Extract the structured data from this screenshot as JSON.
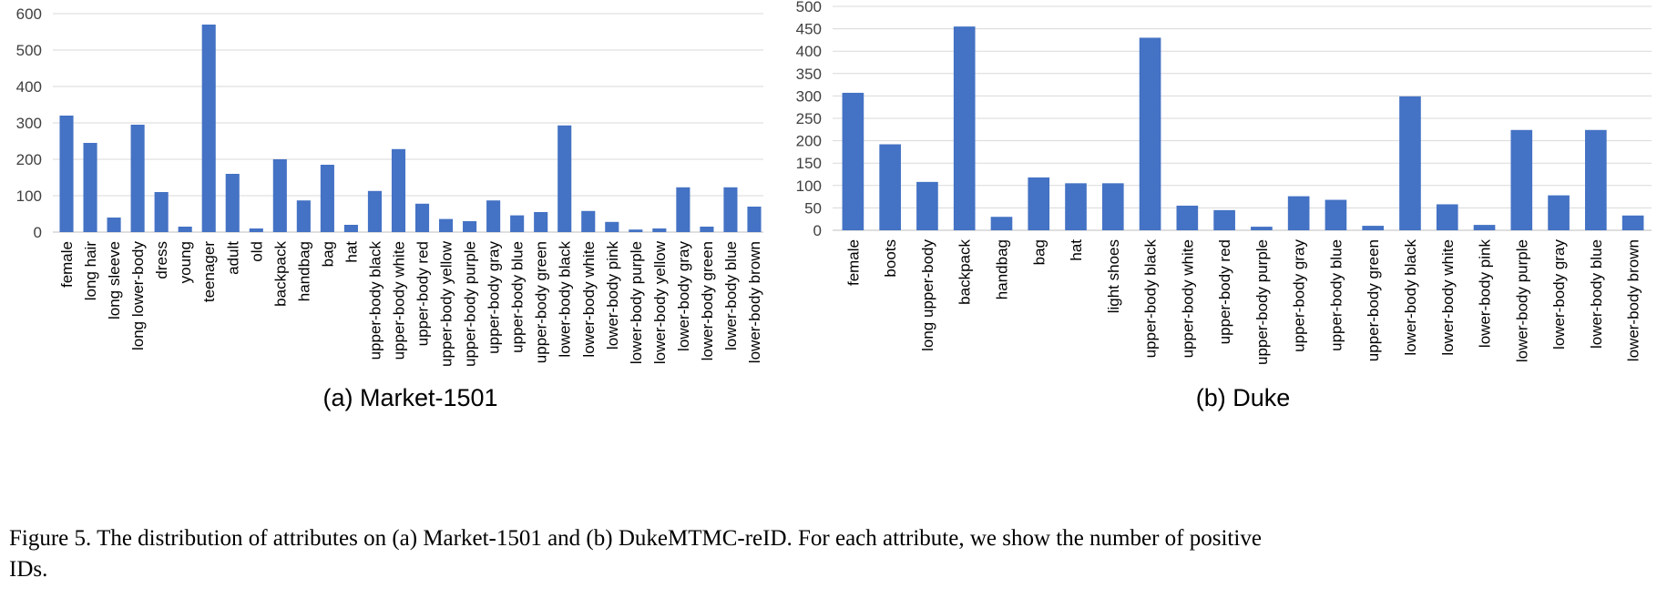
{
  "chart_data": [
    {
      "type": "bar",
      "subtitle": "(a) Market-1501",
      "categories": [
        "female",
        "long hair",
        "long sleeve",
        "long lower-body",
        "dress",
        "young",
        "teenager",
        "adult",
        "old",
        "backpack",
        "handbag",
        "bag",
        "hat",
        "upper-body black",
        "upper-body white",
        "upper-body red",
        "upper-body yellow",
        "upper-body purple",
        "upper-body gray",
        "upper-body blue",
        "upper-body green",
        "lower-body black",
        "lower-body white",
        "lower-body pink",
        "lower-body purple",
        "lower-body yellow",
        "lower-body gray",
        "lower-body green",
        "lower-body blue",
        "lower-body brown"
      ],
      "values": [
        320,
        245,
        40,
        295,
        110,
        15,
        570,
        160,
        10,
        200,
        87,
        185,
        20,
        113,
        228,
        78,
        36,
        30,
        87,
        46,
        55,
        293,
        58,
        28,
        7,
        10,
        123,
        15,
        123,
        70
      ],
      "ylim": [
        0,
        600
      ],
      "yticks": [
        0,
        100,
        200,
        300,
        400,
        500,
        600
      ],
      "grid": true,
      "bar_color": "#4472C4"
    },
    {
      "type": "bar",
      "subtitle": "(b) Duke",
      "categories": [
        "female",
        "boots",
        "long upper-body",
        "backpack",
        "handbag",
        "bag",
        "hat",
        "light shoes",
        "upper-body black",
        "upper-body white",
        "upper-body red",
        "upper-body purple",
        "upper-body gray",
        "upper-body blue",
        "upper-body green",
        "lower-body black",
        "lower-body white",
        "lower-body pink",
        "lower-body purple",
        "lower-body gray",
        "lower-body blue",
        "lower-body brown"
      ],
      "values": [
        307,
        192,
        108,
        455,
        30,
        118,
        105,
        105,
        430,
        55,
        45,
        8,
        76,
        68,
        10,
        299,
        58,
        12,
        224,
        78,
        224,
        33
      ],
      "ylim": [
        0,
        500
      ],
      "yticks": [
        0,
        50,
        100,
        150,
        200,
        250,
        300,
        350,
        400,
        450,
        500
      ],
      "grid": true,
      "bar_color": "#4472C4"
    }
  ],
  "caption": {
    "line1": "Figure 5. The distribution of attributes on (a) Market-1501 and (b) DukeMTMC-reID. For each attribute, we show the number of positive",
    "line2": "IDs."
  }
}
